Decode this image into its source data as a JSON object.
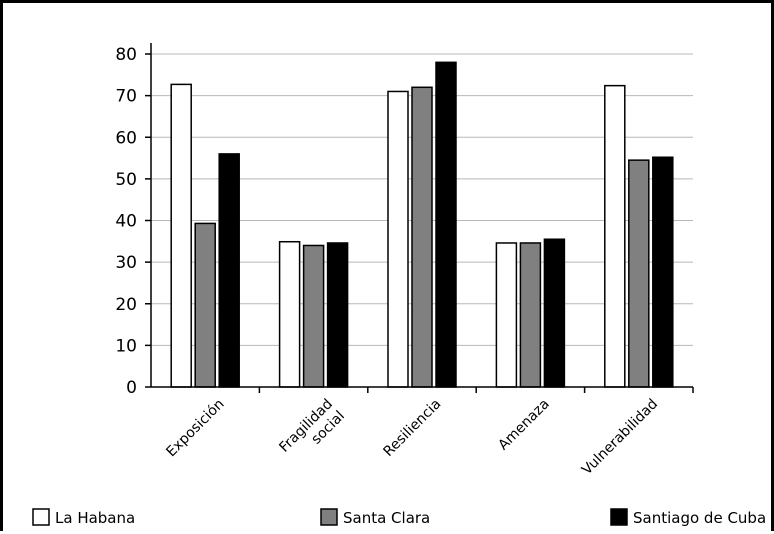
{
  "chart_data": {
    "type": "bar",
    "title": "",
    "xlabel": "",
    "ylabel": "",
    "categories": [
      "Exposición",
      "Fragilidad social",
      "Resiliencia",
      "Amenaza",
      "Vulnerabilidad"
    ],
    "category_label_lines": [
      [
        "Exposición"
      ],
      [
        "Fragilidad",
        "social"
      ],
      [
        "Resiliencia"
      ],
      [
        "Amenaza"
      ],
      [
        "Vulnerabilidad"
      ]
    ],
    "series": [
      {
        "name": "La Habana",
        "color": "#ffffff",
        "values": [
          72.7,
          34.9,
          71.0,
          34.6,
          72.4
        ]
      },
      {
        "name": "Santa Clara",
        "color": "#808080",
        "values": [
          39.3,
          34.0,
          72.0,
          34.6,
          54.5
        ]
      },
      {
        "name": "Santiago de Cuba",
        "color": "#000000",
        "values": [
          56.0,
          34.6,
          78.0,
          35.5,
          55.2
        ]
      }
    ],
    "ylim": [
      0,
      80
    ],
    "yticks": [
      0,
      10,
      20,
      30,
      40,
      50,
      60,
      70,
      80
    ],
    "grid": true,
    "legend_position": "bottom"
  }
}
